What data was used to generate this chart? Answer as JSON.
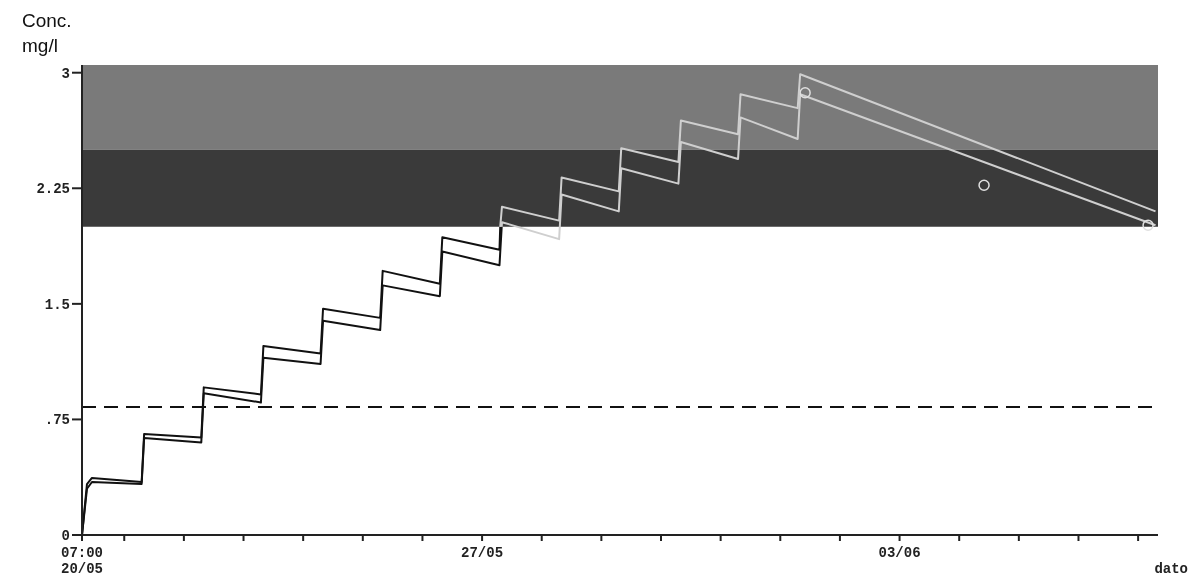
{
  "chart_data": {
    "type": "line",
    "ylabel": "Conc.\nmg/l",
    "xlabel": "dato",
    "xlim": [
      "--05-20T07:00",
      "--06-07T08:00"
    ],
    "xticks": [
      {
        "value": "--05-20T07:00",
        "label": "07:00\n20/05"
      },
      {
        "value": "--05-21",
        "label": null
      },
      {
        "value": "--05-22",
        "label": null
      },
      {
        "value": "--05-23",
        "label": null
      },
      {
        "value": "--05-24",
        "label": null
      },
      {
        "value": "--05-25",
        "label": null
      },
      {
        "value": "--05-26",
        "label": null
      },
      {
        "value": "--05-27",
        "label": "27/05"
      },
      {
        "value": "--05-28",
        "label": null
      },
      {
        "value": "--05-29",
        "label": null
      },
      {
        "value": "--05-30",
        "label": null
      },
      {
        "value": "--05-31",
        "label": null
      },
      {
        "value": "--06-01",
        "label": null
      },
      {
        "value": "--06-02",
        "label": null
      },
      {
        "value": "--06-03",
        "label": "03/06"
      },
      {
        "value": "--06-04",
        "label": null
      },
      {
        "value": "--06-05",
        "label": null
      },
      {
        "value": "--06-06",
        "label": null
      },
      {
        "value": "--06-07",
        "label": null
      }
    ],
    "ylim": [
      0,
      3.05
    ],
    "yticks": [
      0,
      {
        "value": 0.75,
        "label": ".75"
      },
      1.5,
      2.25,
      3
    ],
    "bands": [
      {
        "axis": "y",
        "from": 2.5,
        "to": 3.05,
        "color": "#7a7a7a"
      },
      {
        "axis": "y",
        "from": 2,
        "to": 2.5,
        "color": "#3a3a3a"
      }
    ],
    "ref_lines": [
      {
        "axis": "y",
        "value": 0.83,
        "color": "#111111",
        "line_style": "dashed"
      }
    ],
    "series": [
      {
        "color": "#111111",
        "x": [
          "--05-20T07:00",
          "--05-20T09:00",
          "--05-20T11:00",
          "--05-21T07:00",
          "--05-21T08:00",
          "--05-22T07:00",
          "--05-22T08:00",
          "--05-23T07:00",
          "--05-23T08:00",
          "--05-24T07:00",
          "--05-24T08:00",
          "--05-25T07:00",
          "--05-25T08:00",
          "--05-26T07:00",
          "--05-26T08:00",
          "--05-27T07:00",
          "--05-27T07:18"
        ],
        "values": [
          0,
          0.33,
          0.37,
          0.344,
          0.656,
          0.633,
          0.958,
          0.912,
          1.227,
          1.178,
          1.468,
          1.409,
          1.714,
          1.63,
          1.932,
          1.851,
          2.0
        ]
      },
      {
        "color": "#111111",
        "x": [
          "--05-20T07:00",
          "--05-20T09:00",
          "--05-20T11:00",
          "--05-21T07:00",
          "--05-21T08:00",
          "--05-22T07:00",
          "--05-22T08:00",
          "--05-23T07:00",
          "--05-23T08:00",
          "--05-24T07:00",
          "--05-24T08:00",
          "--05-25T07:00",
          "--05-25T08:00",
          "--05-26T07:00",
          "--05-26T08:00",
          "--05-27T07:00",
          "--05-27T07:54"
        ],
        "values": [
          0,
          0.3,
          0.344,
          0.331,
          0.63,
          0.6,
          0.92,
          0.86,
          1.15,
          1.11,
          1.39,
          1.33,
          1.62,
          1.55,
          1.84,
          1.75,
          2.0
        ]
      },
      {
        "color": "#cfcfcf",
        "x": [
          "--05-27T07:18",
          "--05-27T08:00",
          "--05-28T07:00",
          "--05-28T08:00",
          "--05-29T07:00",
          "--05-29T08:00",
          "--05-30T07:00",
          "--05-30T08:00",
          "--05-31T07:00",
          "--05-31T08:00",
          "--06-01T07:00",
          "--06-01T08:00",
          "--06-07T07:00"
        ],
        "values": [
          2.0,
          2.13,
          2.04,
          2.32,
          2.23,
          2.51,
          2.42,
          2.69,
          2.6,
          2.86,
          2.77,
          2.99,
          2.1
        ]
      },
      {
        "color": "#cfcfcf",
        "x": [
          "--05-27T07:54",
          "--05-27T08:00",
          "--05-28T07:00",
          "--05-28T08:00",
          "--05-29T07:00",
          "--05-29T08:00",
          "--05-30T07:00",
          "--05-30T08:00",
          "--05-31T07:00",
          "--05-31T08:00",
          "--06-01T07:00",
          "--06-01T08:00",
          "--06-07T07:00"
        ],
        "values": [
          2.0,
          2.03,
          1.92,
          2.21,
          2.1,
          2.38,
          2.28,
          2.55,
          2.44,
          2.71,
          2.57,
          2.86,
          2.01
        ]
      },
      {
        "type": "scatter",
        "color": "#e0e0e0",
        "marker": "circle",
        "x": [
          "--06-01T10:00",
          "--06-04T10:00",
          "--06-07T04:00"
        ],
        "values": [
          2.87,
          2.27,
          2.01
        ]
      }
    ]
  }
}
